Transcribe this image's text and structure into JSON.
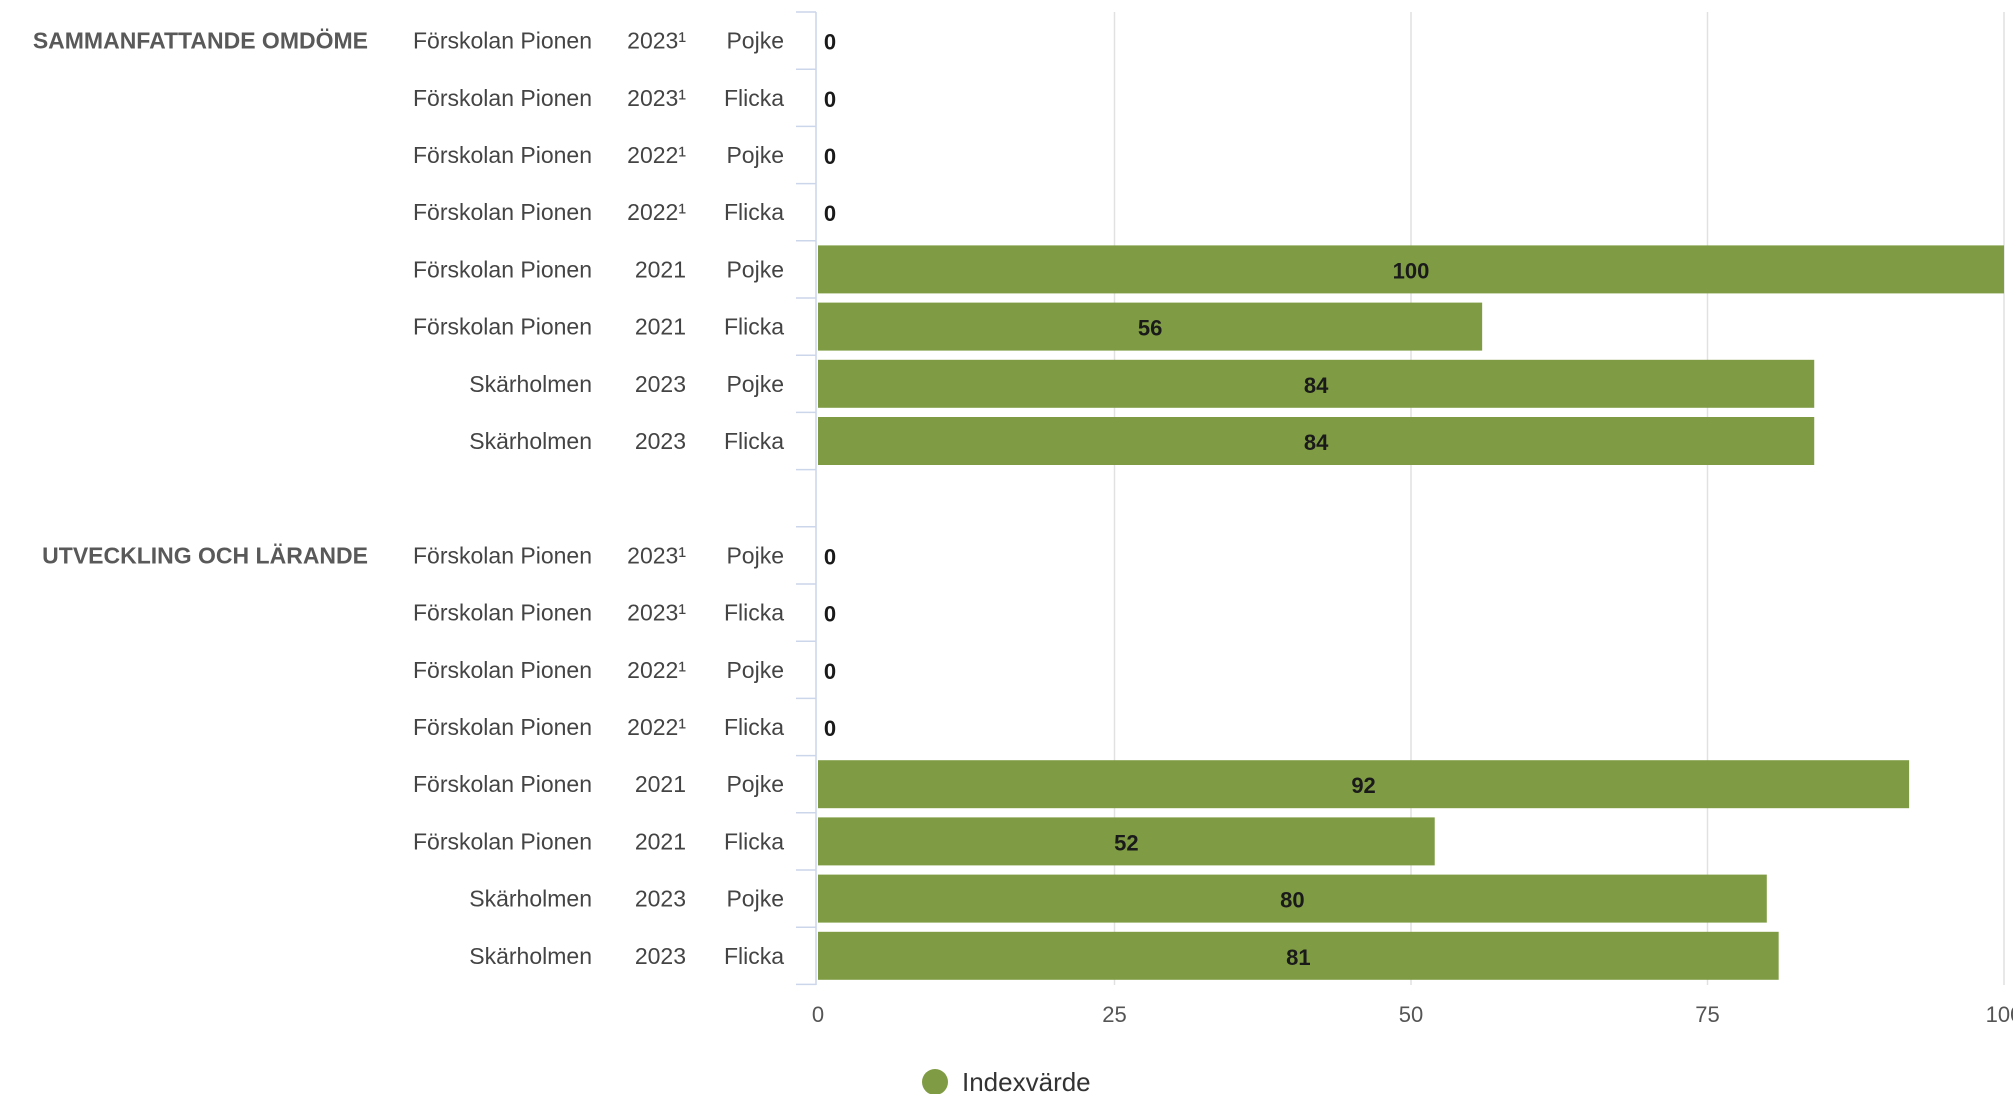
{
  "chart_data": {
    "type": "bar",
    "orientation": "horizontal",
    "xlim": [
      0,
      100
    ],
    "xticks": [
      "0",
      "25",
      "50",
      "75",
      "100"
    ],
    "grid": true,
    "legend": {
      "placement": "bottom-center"
    },
    "series": [
      {
        "name": "Indexvärde",
        "color": "#7f9c44"
      }
    ],
    "groups": [
      {
        "label": "SAMMANFATTANDE OMDÖME",
        "rows": [
          {
            "unit": "Förskolan Pionen",
            "year": "2023¹",
            "gender": "Pojke",
            "value": 0
          },
          {
            "unit": "Förskolan Pionen",
            "year": "2023¹",
            "gender": "Flicka",
            "value": 0
          },
          {
            "unit": "Förskolan Pionen",
            "year": "2022¹",
            "gender": "Pojke",
            "value": 0
          },
          {
            "unit": "Förskolan Pionen",
            "year": "2022¹",
            "gender": "Flicka",
            "value": 0
          },
          {
            "unit": "Förskolan Pionen",
            "year": "2021",
            "gender": "Pojke",
            "value": 100
          },
          {
            "unit": "Förskolan Pionen",
            "year": "2021",
            "gender": "Flicka",
            "value": 56
          },
          {
            "unit": "Skärholmen",
            "year": "2023",
            "gender": "Pojke",
            "value": 84
          },
          {
            "unit": "Skärholmen",
            "year": "2023",
            "gender": "Flicka",
            "value": 84
          }
        ]
      },
      {
        "label": "UTVECKLING OCH LÄRANDE",
        "rows": [
          {
            "unit": "Förskolan Pionen",
            "year": "2023¹",
            "gender": "Pojke",
            "value": 0
          },
          {
            "unit": "Förskolan Pionen",
            "year": "2023¹",
            "gender": "Flicka",
            "value": 0
          },
          {
            "unit": "Förskolan Pionen",
            "year": "2022¹",
            "gender": "Pojke",
            "value": 0
          },
          {
            "unit": "Förskolan Pionen",
            "year": "2022¹",
            "gender": "Flicka",
            "value": 0
          },
          {
            "unit": "Förskolan Pionen",
            "year": "2021",
            "gender": "Pojke",
            "value": 92
          },
          {
            "unit": "Förskolan Pionen",
            "year": "2021",
            "gender": "Flicka",
            "value": 52
          },
          {
            "unit": "Skärholmen",
            "year": "2023",
            "gender": "Pojke",
            "value": 80
          },
          {
            "unit": "Skärholmen",
            "year": "2023",
            "gender": "Flicka",
            "value": 81
          }
        ]
      }
    ]
  }
}
